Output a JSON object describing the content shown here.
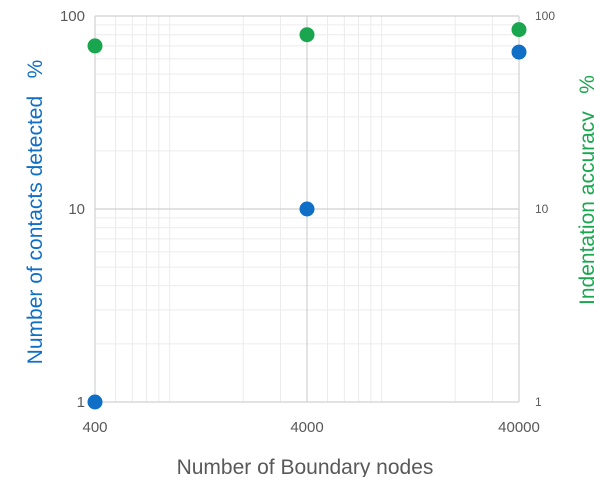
{
  "chart_data": {
    "type": "scatter",
    "x_scale": "log",
    "y_scale": "log",
    "x": [
      400,
      4000,
      40000
    ],
    "xlabel": "Number of Boundary nodes",
    "xlim": [
      400,
      40000
    ],
    "x_ticks": [
      "400",
      "4000",
      "40000"
    ],
    "ylabel_left": "Number of contacts detected   %",
    "ylabel_right": "Indentation accuracy   %",
    "ylim_left": [
      1,
      100
    ],
    "ylim_right": [
      1,
      100
    ],
    "y_ticks_left": [
      "1",
      "10",
      "100"
    ],
    "y_ticks_right": [
      "1",
      "10",
      "100"
    ],
    "grid": true,
    "series": [
      {
        "axis": "left",
        "color": "#0f6fc6",
        "values": [
          1,
          10,
          65
        ]
      },
      {
        "axis": "right",
        "color": "#1aa64f",
        "values": [
          70,
          80,
          85
        ]
      }
    ],
    "colors": {
      "left_axis_label": "#0f6fc6",
      "right_axis_label": "#1aa64f"
    }
  }
}
